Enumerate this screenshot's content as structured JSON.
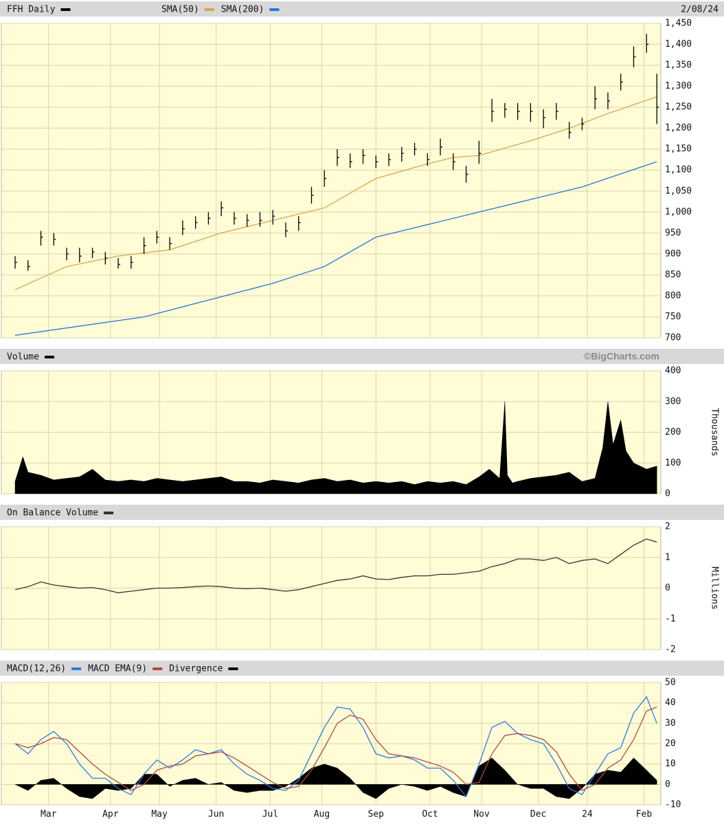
{
  "chart_data": [
    {
      "type": "ohlc",
      "title": "FFH Daily",
      "date": "2/08/24",
      "color": "#000000",
      "x": [
        0,
        5,
        10,
        15,
        20,
        25,
        30,
        35,
        40,
        45,
        50,
        55,
        60,
        65,
        70,
        75,
        80,
        85,
        90,
        95,
        100,
        105,
        110,
        115,
        120,
        125,
        130,
        135,
        140,
        145,
        150,
        155,
        160,
        165,
        170,
        175,
        180,
        185,
        190,
        195,
        200,
        205,
        210,
        215,
        220,
        225,
        230,
        235,
        240,
        245,
        249
      ],
      "high": [
        895,
        885,
        955,
        950,
        915,
        915,
        915,
        905,
        890,
        895,
        940,
        955,
        940,
        980,
        990,
        1000,
        1025,
        1000,
        995,
        1000,
        1005,
        975,
        990,
        1060,
        1100,
        1150,
        1140,
        1150,
        1135,
        1140,
        1155,
        1165,
        1140,
        1175,
        1140,
        1110,
        1170,
        1270,
        1260,
        1260,
        1260,
        1245,
        1260,
        1215,
        1225,
        1300,
        1285,
        1330,
        1395,
        1425,
        1330
      ],
      "low": [
        865,
        860,
        920,
        920,
        885,
        880,
        890,
        875,
        865,
        865,
        900,
        925,
        910,
        945,
        960,
        970,
        990,
        970,
        965,
        965,
        970,
        940,
        955,
        1020,
        1060,
        1110,
        1105,
        1115,
        1105,
        1110,
        1120,
        1135,
        1110,
        1135,
        1100,
        1070,
        1115,
        1215,
        1225,
        1220,
        1215,
        1200,
        1220,
        1175,
        1195,
        1245,
        1245,
        1290,
        1345,
        1380,
        1210
      ],
      "close": [
        880,
        870,
        940,
        935,
        900,
        895,
        905,
        890,
        875,
        880,
        920,
        940,
        925,
        960,
        975,
        985,
        1010,
        985,
        980,
        980,
        990,
        955,
        975,
        1040,
        1080,
        1130,
        1120,
        1135,
        1120,
        1125,
        1140,
        1150,
        1125,
        1155,
        1120,
        1090,
        1140,
        1240,
        1245,
        1240,
        1240,
        1225,
        1240,
        1190,
        1210,
        1270,
        1265,
        1310,
        1370,
        1400,
        1250
      ],
      "series": [
        {
          "name": "SMA(50)",
          "color": "#d9a54e",
          "x": [
            0,
            20,
            40,
            60,
            80,
            100,
            120,
            140,
            160,
            170,
            180,
            200,
            215,
            230,
            249
          ],
          "values": [
            815,
            870,
            895,
            910,
            950,
            980,
            1010,
            1080,
            1115,
            1130,
            1135,
            1170,
            1200,
            1235,
            1275
          ]
        },
        {
          "name": "SMA(200)",
          "color": "#2a73e0",
          "x": [
            0,
            50,
            100,
            120,
            140,
            180,
            200,
            220,
            249
          ],
          "values": [
            706,
            750,
            830,
            870,
            940,
            1000,
            1030,
            1060,
            1120
          ]
        }
      ],
      "ylim": [
        700,
        1450
      ],
      "yticks": [
        700,
        750,
        800,
        850,
        900,
        950,
        {
          "value": 1000,
          "label": "1,000"
        },
        {
          "value": 1050,
          "label": "1,050"
        },
        {
          "value": 1100,
          "label": "1,100"
        },
        {
          "value": 1150,
          "label": "1,150"
        },
        {
          "value": 1200,
          "label": "1,200"
        },
        {
          "value": 1250,
          "label": "1,250"
        },
        {
          "value": 1300,
          "label": "1,300"
        },
        {
          "value": 1350,
          "label": "1,350"
        },
        {
          "value": 1400,
          "label": "1,400"
        },
        {
          "value": 1450,
          "label": "1,450"
        }
      ],
      "grid": true
    },
    {
      "type": "area",
      "credit": "©BigCharts.com",
      "y_label": "Thousands",
      "series": [
        {
          "name": "Volume",
          "color": "#000000",
          "x": [
            0,
            3,
            5,
            10,
            15,
            20,
            25,
            30,
            35,
            40,
            45,
            50,
            55,
            60,
            65,
            70,
            75,
            80,
            85,
            90,
            95,
            100,
            105,
            110,
            115,
            120,
            125,
            130,
            135,
            140,
            145,
            150,
            155,
            160,
            165,
            170,
            175,
            180,
            184,
            188,
            190,
            191,
            193,
            195,
            200,
            205,
            210,
            215,
            220,
            225,
            228,
            230,
            232,
            235,
            237,
            240,
            245,
            249
          ],
          "values": [
            40,
            120,
            70,
            60,
            45,
            50,
            55,
            80,
            45,
            40,
            45,
            40,
            50,
            45,
            40,
            45,
            50,
            55,
            40,
            40,
            35,
            45,
            40,
            35,
            45,
            50,
            40,
            45,
            35,
            40,
            35,
            40,
            30,
            40,
            35,
            40,
            30,
            55,
            80,
            50,
            300,
            60,
            35,
            40,
            50,
            55,
            60,
            70,
            40,
            50,
            150,
            300,
            160,
            240,
            140,
            100,
            80,
            90
          ]
        }
      ],
      "ylim": [
        0,
        400
      ],
      "yticks": [
        0,
        100,
        200,
        300,
        400
      ],
      "grid": true
    },
    {
      "type": "line",
      "y_label": "Millions",
      "series": [
        {
          "name": "On Balance Volume",
          "color": "#333333",
          "x": [
            0,
            5,
            10,
            15,
            20,
            25,
            30,
            35,
            40,
            45,
            50,
            55,
            60,
            65,
            70,
            75,
            80,
            85,
            90,
            95,
            100,
            105,
            110,
            115,
            120,
            125,
            130,
            135,
            140,
            145,
            150,
            155,
            160,
            165,
            170,
            175,
            180,
            185,
            190,
            195,
            200,
            205,
            210,
            215,
            220,
            225,
            230,
            235,
            240,
            245,
            249
          ],
          "values": [
            -0.05,
            0.05,
            0.2,
            0.1,
            0.05,
            0,
            0.02,
            -0.05,
            -0.15,
            -0.1,
            -0.05,
            0,
            0,
            0.02,
            0.05,
            0.07,
            0.05,
            0,
            -0.02,
            0,
            -0.05,
            -0.1,
            -0.05,
            0.05,
            0.15,
            0.25,
            0.3,
            0.4,
            0.3,
            0.28,
            0.35,
            0.4,
            0.4,
            0.45,
            0.45,
            0.5,
            0.55,
            0.7,
            0.8,
            0.95,
            0.95,
            0.9,
            1,
            0.8,
            0.9,
            0.95,
            0.8,
            1.1,
            1.4,
            1.6,
            1.5
          ]
        }
      ],
      "ylim": [
        -2,
        2
      ],
      "yticks": [
        -2,
        -1,
        0,
        1,
        2
      ],
      "grid": true
    },
    {
      "type": "line",
      "x": [
        0,
        5,
        10,
        15,
        20,
        25,
        30,
        35,
        40,
        45,
        50,
        55,
        60,
        65,
        70,
        75,
        80,
        85,
        90,
        95,
        100,
        105,
        110,
        115,
        120,
        125,
        130,
        135,
        140,
        145,
        150,
        155,
        160,
        165,
        170,
        175,
        180,
        185,
        190,
        195,
        200,
        205,
        210,
        215,
        220,
        225,
        230,
        235,
        240,
        245,
        249
      ],
      "series": [
        {
          "name": "MACD(12,26)",
          "color": "#2a7be8",
          "values": [
            20,
            15,
            22,
            26,
            20,
            10,
            3,
            3,
            -2,
            -5,
            5,
            12,
            8,
            12,
            17,
            15,
            17,
            10,
            5,
            2,
            -2,
            -3,
            2,
            15,
            28,
            38,
            37,
            28,
            15,
            13,
            14,
            12,
            8,
            8,
            2,
            -6,
            10,
            28,
            31,
            25,
            22,
            20,
            10,
            -2,
            -5,
            5,
            15,
            18,
            35,
            43,
            30
          ]
        },
        {
          "name": "MACD EMA(9)",
          "color": "#b04a40",
          "values": [
            20,
            18,
            20,
            23,
            22,
            16,
            10,
            5,
            1,
            -3,
            0,
            7,
            9,
            10,
            14,
            15,
            16,
            13,
            9,
            5,
            1,
            -2,
            -1,
            7,
            18,
            30,
            34,
            32,
            22,
            15,
            14,
            13,
            11,
            9,
            6,
            0,
            1,
            15,
            24,
            25,
            24,
            22,
            16,
            5,
            -3,
            0,
            8,
            12,
            22,
            36,
            38
          ]
        },
        {
          "name": "Divergence",
          "color": "#000000",
          "kind": "area",
          "values": [
            0,
            -3,
            2,
            3,
            -2,
            -6,
            -7,
            -2,
            -3,
            -2,
            5,
            5,
            -1,
            2,
            3,
            0,
            1,
            -3,
            -4,
            -3,
            -3,
            -1,
            3,
            8,
            10,
            8,
            3,
            -4,
            -7,
            -2,
            0,
            -1,
            -3,
            -1,
            -4,
            -6,
            9,
            13,
            7,
            0,
            -2,
            -2,
            -6,
            -7,
            -2,
            5,
            7,
            6,
            13,
            7,
            2
          ]
        }
      ],
      "ylim": [
        -10,
        50
      ],
      "yticks": [
        -10,
        0,
        10,
        20,
        30,
        40,
        50
      ],
      "grid": true,
      "xlim": [
        0,
        250
      ],
      "xticks": [
        {
          "value": 13,
          "label": "Mar"
        },
        {
          "value": 37,
          "label": "Apr"
        },
        {
          "value": 56,
          "label": "May"
        },
        {
          "value": 78,
          "label": "Jun"
        },
        {
          "value": 99,
          "label": "Jul"
        },
        {
          "value": 119,
          "label": "Aug"
        },
        {
          "value": 140,
          "label": "Sep"
        },
        {
          "value": 161,
          "label": "Oct"
        },
        {
          "value": 181,
          "label": "Nov"
        },
        {
          "value": 203,
          "label": "Dec"
        },
        {
          "value": 222,
          "label": "24"
        },
        {
          "value": 244,
          "label": "Feb"
        }
      ]
    }
  ]
}
